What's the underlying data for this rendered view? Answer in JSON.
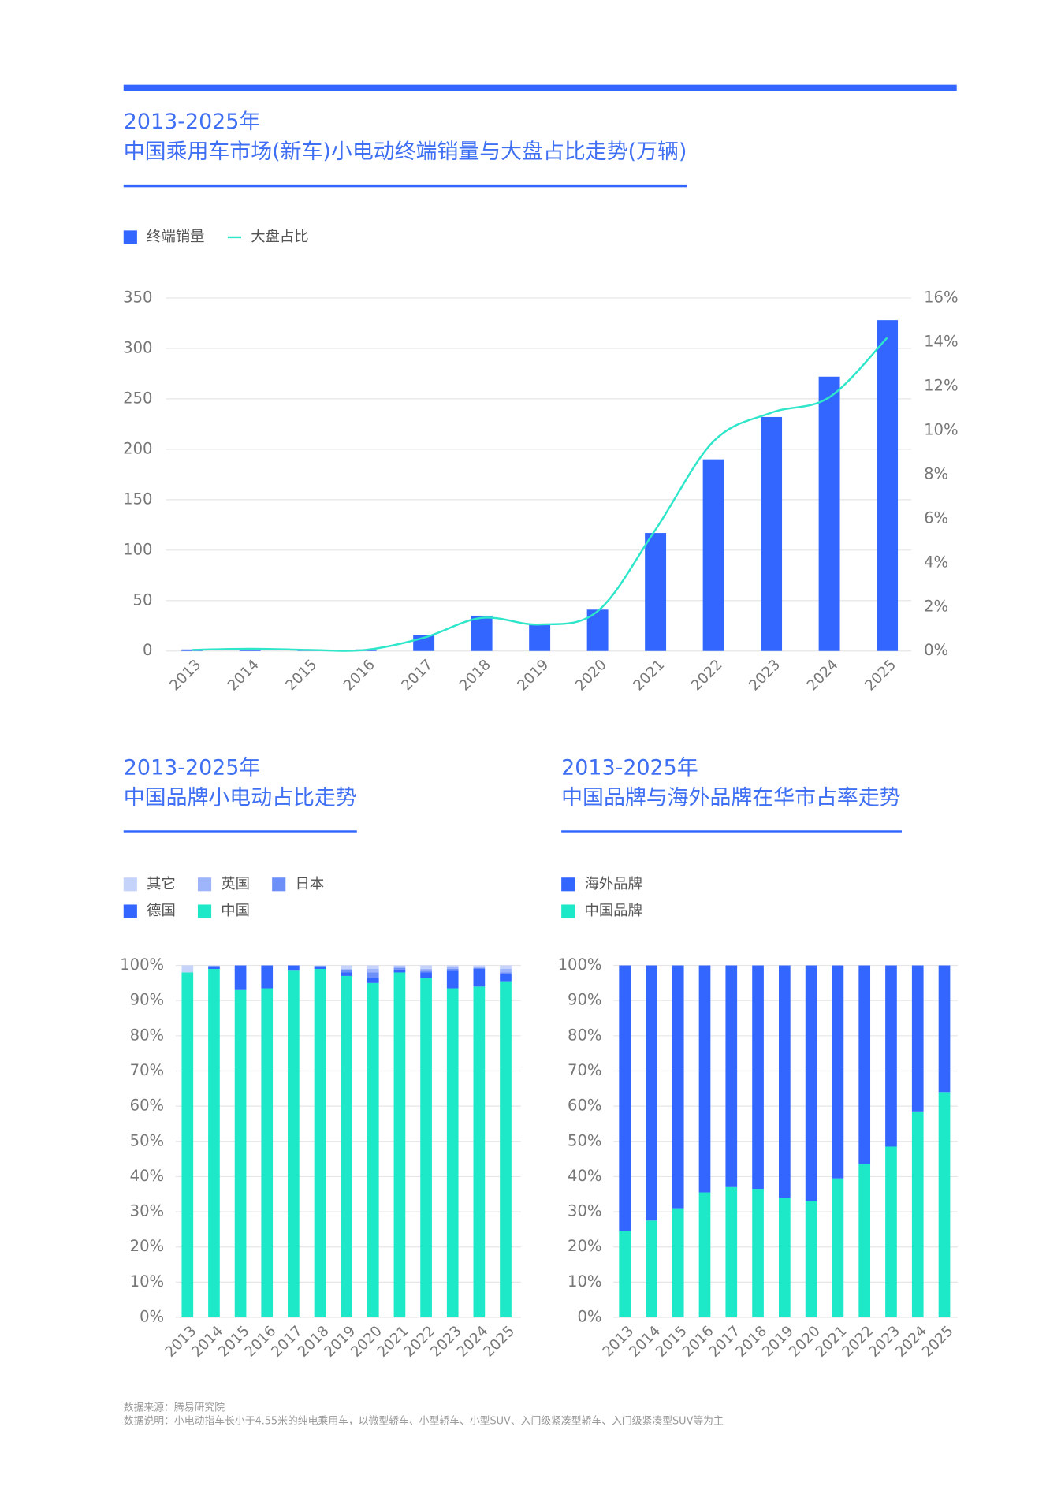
{
  "chart_data": [
    {
      "type": "bar",
      "title": "2013-2025年",
      "subtitle": "中国乘用车市场(新车)小电动终端销量与大盘占比走势(万辆)",
      "categories": [
        "2013",
        "2014",
        "2015",
        "2016",
        "2017",
        "2018",
        "2019",
        "2020",
        "2021",
        "2022",
        "2023",
        "2024",
        "2025"
      ],
      "series": [
        {
          "name": "终端销量",
          "color": "#3366ff",
          "values": [
            1.5,
            2,
            1.5,
            1.5,
            16,
            35,
            27,
            41,
            117,
            190,
            232,
            272,
            328
          ]
        },
        {
          "name": "大盘占比",
          "type": "line",
          "axis": "y2",
          "color": "#2ee6c9",
          "values": [
            0.05,
            0.1,
            0.05,
            0.05,
            0.6,
            1.5,
            1.2,
            1.8,
            5.5,
            9.5,
            10.8,
            11.5,
            14.2
          ]
        }
      ],
      "ylim": [
        0,
        350
      ],
      "yticks": [
        0,
        50,
        100,
        150,
        200,
        250,
        300,
        350
      ],
      "y2lim": [
        0,
        16
      ],
      "y2ticks": [
        {
          "value": 0,
          "label": "0%"
        },
        {
          "value": 2,
          "label": "2%"
        },
        {
          "value": 4,
          "label": "4%"
        },
        {
          "value": 6,
          "label": "6%"
        },
        {
          "value": 8,
          "label": "8%"
        },
        {
          "value": 10,
          "label": "10%"
        },
        {
          "value": 12,
          "label": "12%"
        },
        {
          "value": 14,
          "label": "14%"
        },
        {
          "value": 16,
          "label": "16%"
        }
      ],
      "grid": true,
      "legend": "top-left"
    },
    {
      "type": "stacked_bar",
      "title": "2013-2025年",
      "subtitle": "中国品牌小电动占比走势",
      "categories": [
        "2013",
        "2014",
        "2015",
        "2016",
        "2017",
        "2018",
        "2019",
        "2020",
        "2021",
        "2022",
        "2023",
        "2024",
        "2025"
      ],
      "series": [
        {
          "name": "其它",
          "color": "#c5d3fb",
          "values": [
            2,
            0.2,
            0,
            0,
            0,
            0.2,
            1,
            1,
            0.2,
            1,
            0.5,
            0.5,
            1
          ]
        },
        {
          "name": "英国",
          "color": "#9fb5fb",
          "values": [
            0,
            0,
            0,
            0,
            0,
            0,
            0.2,
            1,
            0.5,
            0.5,
            0.5,
            0.2,
            1
          ]
        },
        {
          "name": "日本",
          "color": "#6d8ff8",
          "values": [
            0,
            0,
            0,
            0,
            0,
            0,
            0.8,
            1.5,
            0.5,
            0.5,
            0.5,
            0.3,
            0.5
          ]
        },
        {
          "name": "德国",
          "color": "#3366ff",
          "values": [
            0,
            0.8,
            7,
            6.5,
            1.5,
            0.8,
            1,
            1.5,
            0.8,
            1.5,
            5,
            5,
            2
          ]
        },
        {
          "name": "中国",
          "color": "#1de9c8",
          "values": [
            98,
            99,
            93,
            93.5,
            98.5,
            99,
            97,
            95,
            98,
            96.5,
            93.5,
            94,
            95.5
          ]
        }
      ],
      "ylim": [
        0,
        100
      ],
      "yticks": [
        {
          "value": 0,
          "label": "0%"
        },
        {
          "value": 10,
          "label": "10%"
        },
        {
          "value": 20,
          "label": "20%"
        },
        {
          "value": 30,
          "label": "30%"
        },
        {
          "value": 40,
          "label": "40%"
        },
        {
          "value": 50,
          "label": "50%"
        },
        {
          "value": 60,
          "label": "60%"
        },
        {
          "value": 70,
          "label": "70%"
        },
        {
          "value": 80,
          "label": "80%"
        },
        {
          "value": 90,
          "label": "90%"
        },
        {
          "value": 100,
          "label": "100%"
        }
      ],
      "grid": true,
      "legend": "top-left"
    },
    {
      "type": "stacked_bar",
      "title": "2013-2025年",
      "subtitle": "中国品牌与海外品牌在华市占率走势",
      "categories": [
        "2013",
        "2014",
        "2015",
        "2016",
        "2017",
        "2018",
        "2019",
        "2020",
        "2021",
        "2022",
        "2023",
        "2024",
        "2025"
      ],
      "series": [
        {
          "name": "海外品牌",
          "color": "#3366ff",
          "values": [
            75.5,
            72.5,
            69,
            64.5,
            63,
            63.5,
            66,
            67,
            60.5,
            56.5,
            51.5,
            41.5,
            36
          ]
        },
        {
          "name": "中国品牌",
          "color": "#1de9c8",
          "values": [
            24.5,
            27.5,
            31,
            35.5,
            37,
            36.5,
            34,
            33,
            39.5,
            43.5,
            48.5,
            58.5,
            64
          ]
        }
      ],
      "ylim": [
        0,
        100
      ],
      "yticks": [
        {
          "value": 0,
          "label": "0%"
        },
        {
          "value": 10,
          "label": "10%"
        },
        {
          "value": 20,
          "label": "20%"
        },
        {
          "value": 30,
          "label": "30%"
        },
        {
          "value": 40,
          "label": "40%"
        },
        {
          "value": 50,
          "label": "50%"
        },
        {
          "value": 60,
          "label": "60%"
        },
        {
          "value": 70,
          "label": "70%"
        },
        {
          "value": 80,
          "label": "80%"
        },
        {
          "value": 90,
          "label": "90%"
        },
        {
          "value": 100,
          "label": "100%"
        }
      ],
      "grid": true,
      "legend": "top-left"
    }
  ],
  "source": "数据来源：腾易研究院",
  "note": "数据说明：小电动指车长小于4.55米的纯电乘用车，以微型轿车、小型轿车、小型SUV、入门级紧凑型轿车、入门级紧凑型SUV等为主"
}
